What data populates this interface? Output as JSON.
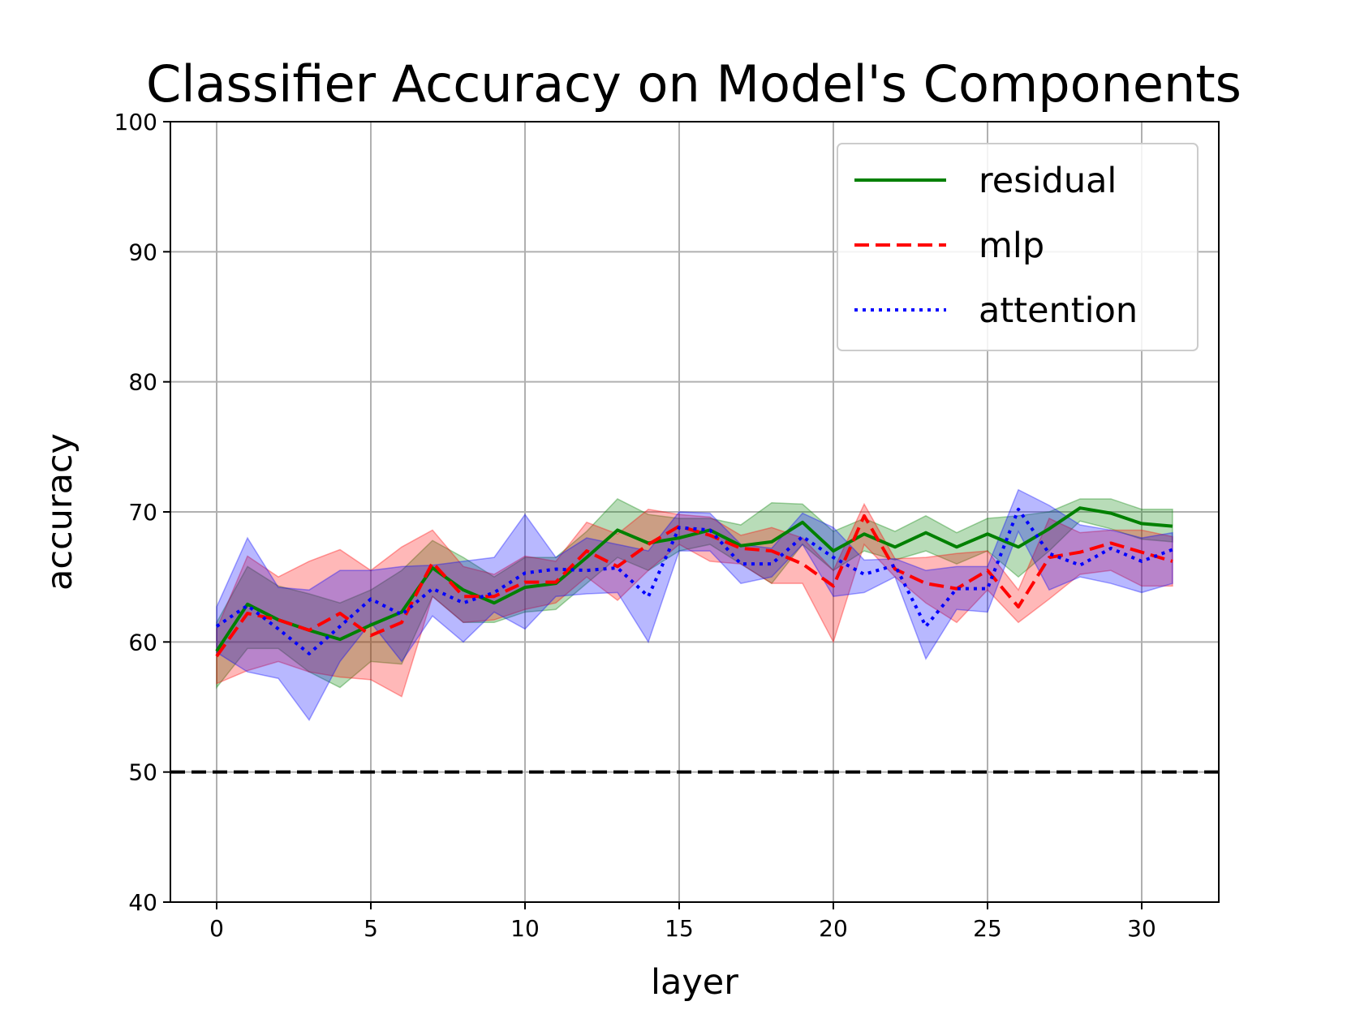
{
  "chart_data": {
    "type": "line",
    "title": "Classifier Accuracy on Model's Components",
    "xlabel": "layer",
    "ylabel": "accuracy",
    "xlim": [
      -1.5,
      32.5
    ],
    "ylim": [
      40,
      100
    ],
    "xticks": [
      0,
      5,
      10,
      15,
      20,
      25,
      30
    ],
    "yticks": [
      40,
      50,
      60,
      70,
      80,
      90,
      100
    ],
    "grid": true,
    "legend_position": "upper right",
    "x": [
      0,
      1,
      2,
      3,
      4,
      5,
      6,
      7,
      8,
      9,
      10,
      11,
      12,
      13,
      14,
      15,
      16,
      17,
      18,
      19,
      20,
      21,
      22,
      23,
      24,
      25,
      26,
      27,
      28,
      29,
      30,
      31
    ],
    "series": [
      {
        "name": "residual",
        "color": "#008000",
        "line_style": "solid",
        "values": [
          59.3,
          62.9,
          61.7,
          60.9,
          60.2,
          61.3,
          62.3,
          65.7,
          64.0,
          63.0,
          64.2,
          64.5,
          66.5,
          68.6,
          67.6,
          68.0,
          68.6,
          67.4,
          67.7,
          69.2,
          67.0,
          68.3,
          67.3,
          68.4,
          67.3,
          68.3,
          67.3,
          68.7,
          70.3,
          69.9,
          69.1,
          68.9
        ],
        "lower": [
          56.5,
          59.5,
          59.5,
          57.7,
          56.5,
          58.5,
          58.3,
          63.5,
          61.5,
          61.5,
          62.3,
          62.5,
          64.5,
          66.5,
          65.5,
          67.0,
          67.5,
          66.0,
          64.5,
          67.5,
          65.5,
          67.0,
          66.3,
          67.0,
          66.0,
          67.0,
          65.0,
          67.0,
          69.3,
          68.7,
          67.9,
          67.7
        ],
        "upper": [
          61.5,
          65.8,
          64.3,
          63.7,
          63.0,
          64.0,
          65.5,
          67.8,
          66.5,
          65.0,
          66.5,
          66.5,
          68.5,
          71.0,
          69.8,
          69.5,
          69.5,
          69.0,
          70.7,
          70.6,
          68.5,
          69.5,
          68.5,
          69.7,
          68.4,
          69.5,
          69.7,
          70.0,
          71.0,
          71.0,
          70.2,
          70.2
        ]
      },
      {
        "name": "mlp",
        "color": "#ff0000",
        "line_style": "dashed",
        "values": [
          58.9,
          62.2,
          61.7,
          60.9,
          62.2,
          60.5,
          61.5,
          66.1,
          63.5,
          63.5,
          64.6,
          64.6,
          67.0,
          65.8,
          67.5,
          68.9,
          68.2,
          67.2,
          67.0,
          66.0,
          64.3,
          69.7,
          65.6,
          64.5,
          64.1,
          65.5,
          62.7,
          66.5,
          66.9,
          67.6,
          66.9,
          66.2
        ],
        "lower": [
          56.8,
          57.8,
          58.5,
          57.7,
          57.3,
          57.1,
          55.8,
          63.5,
          61.5,
          61.7,
          62.5,
          63.0,
          65.0,
          63.2,
          65.5,
          67.5,
          66.2,
          66.0,
          64.5,
          64.5,
          60.0,
          67.5,
          65.0,
          63.0,
          61.5,
          64.0,
          61.5,
          63.3,
          65.2,
          65.5,
          64.3,
          64.3
        ],
        "upper": [
          61.0,
          66.6,
          65.0,
          66.2,
          67.1,
          65.5,
          67.3,
          68.6,
          65.8,
          65.2,
          66.6,
          66.2,
          69.2,
          68.3,
          70.2,
          69.8,
          69.6,
          68.2,
          68.8,
          68.0,
          65.5,
          70.6,
          66.4,
          66.5,
          66.8,
          67.0,
          64.0,
          69.5,
          68.4,
          68.6,
          68.6,
          68.1
        ]
      },
      {
        "name": "attention",
        "color": "#0000ff",
        "line_style": "dotted",
        "values": [
          61.2,
          62.8,
          61.0,
          59.1,
          61.2,
          63.3,
          62.1,
          64.1,
          63.0,
          63.8,
          65.3,
          65.6,
          65.5,
          65.7,
          63.5,
          68.8,
          68.6,
          66.0,
          66.0,
          68.1,
          66.5,
          65.2,
          65.9,
          61.2,
          64.1,
          64.1,
          70.2,
          66.8,
          65.9,
          67.2,
          66.2,
          67.1
        ],
        "lower": [
          59.2,
          57.7,
          57.2,
          54.0,
          58.5,
          61.5,
          58.5,
          62.0,
          60.0,
          62.3,
          61.0,
          63.5,
          63.7,
          63.8,
          60.0,
          67.0,
          67.0,
          64.5,
          65.0,
          67.5,
          63.5,
          63.8,
          65.0,
          58.7,
          62.5,
          62.3,
          68.5,
          64.0,
          65.0,
          64.5,
          63.8,
          64.5
        ],
        "upper": [
          62.7,
          68.0,
          64.2,
          64.0,
          65.5,
          65.5,
          65.8,
          65.9,
          66.2,
          66.5,
          69.8,
          66.5,
          68.0,
          67.5,
          67.0,
          70.0,
          69.9,
          67.5,
          67.2,
          69.9,
          68.8,
          66.3,
          66.4,
          65.5,
          65.8,
          65.8,
          71.7,
          70.5,
          69.0,
          68.6,
          68.0,
          68.4
        ]
      }
    ],
    "reference_line": {
      "y": 50,
      "color": "#000000",
      "line_style": "dashed"
    }
  }
}
